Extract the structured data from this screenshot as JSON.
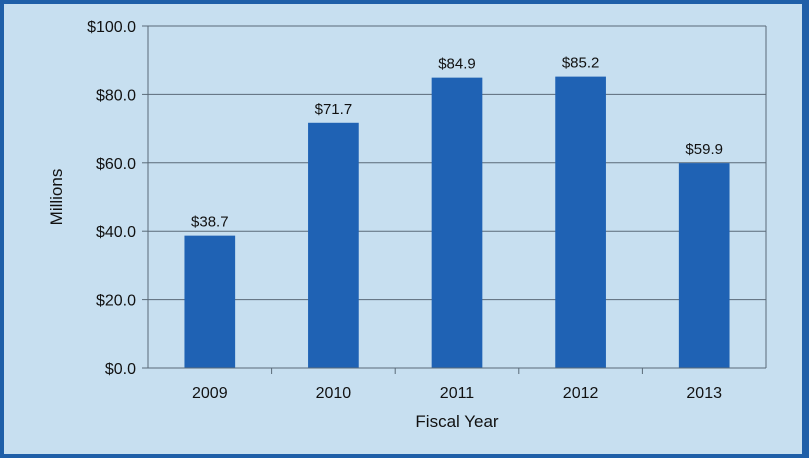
{
  "chart_data": {
    "type": "bar",
    "categories": [
      "2009",
      "2010",
      "2011",
      "2012",
      "2013"
    ],
    "values": [
      38.7,
      71.7,
      84.9,
      85.2,
      59.9
    ],
    "data_labels": [
      "$38.7",
      "$71.7",
      "$84.9",
      "$85.2",
      "$59.9"
    ],
    "title": "",
    "xlabel": "Fiscal Year",
    "ylabel": "Millions",
    "ylim": [
      0,
      100
    ],
    "yticks": [
      0,
      20,
      40,
      60,
      80,
      100
    ],
    "ytick_labels": [
      "$0.0",
      "$20.0",
      "$40.0",
      "$60.0",
      "$80.0",
      "$100.0"
    ],
    "grid": true,
    "legend": "none",
    "colors": {
      "bar": "#1f62b4",
      "plot_background": "#c7dff0",
      "frame": "#1f5fa8",
      "gridline": "#5a6a78"
    }
  }
}
